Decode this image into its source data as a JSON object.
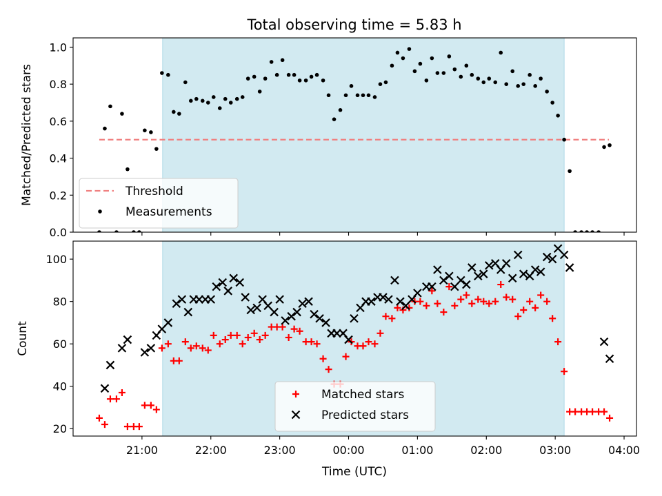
{
  "figure": {
    "title": "Total observing time = 5.83 h",
    "xlabel": "Time (UTC)"
  },
  "colors": {
    "band": "#add8e6",
    "threshold": "#f08080",
    "measurements": "#000000",
    "matched": "#ff0000",
    "predicted": "#000000"
  },
  "chart_data": [
    {
      "type": "scatter",
      "ylabel": "Matched/Predicted stars",
      "ylim": [
        0,
        1.05
      ],
      "yticks": [
        0.0,
        0.2,
        0.4,
        0.6,
        0.8,
        1.0
      ],
      "ytick_labels": [
        "0.0",
        "0.2",
        "0.4",
        "0.6",
        "0.8",
        "1.0"
      ],
      "xlim_hours": [
        20.0,
        28.18
      ],
      "xticks_hours": [
        21,
        22,
        23,
        24,
        25,
        26,
        27,
        28
      ],
      "xtick_labels": [
        "21:00",
        "22:00",
        "23:00",
        "00:00",
        "01:00",
        "02:00",
        "03:00",
        "04:00"
      ],
      "xticklabels_visible": false,
      "shaded_span_hours": [
        21.3,
        27.13
      ],
      "legend_position": "lower left",
      "threshold": {
        "name": "Threshold",
        "value": 0.5,
        "x_hours": [
          20.38,
          27.78
        ]
      },
      "series": [
        {
          "name": "Measurements",
          "x_hours": [
            20.38,
            20.46,
            20.54,
            20.63,
            20.71,
            20.79,
            20.88,
            20.96,
            21.04,
            21.13,
            21.21,
            21.29,
            21.38,
            21.46,
            21.54,
            21.63,
            21.71,
            21.79,
            21.88,
            21.96,
            22.04,
            22.13,
            22.21,
            22.29,
            22.38,
            22.46,
            22.54,
            22.63,
            22.71,
            22.79,
            22.88,
            22.96,
            23.04,
            23.13,
            23.21,
            23.29,
            23.38,
            23.46,
            23.54,
            23.63,
            23.71,
            23.79,
            23.88,
            23.96,
            24.04,
            24.13,
            24.21,
            24.29,
            24.38,
            24.46,
            24.54,
            24.63,
            24.71,
            24.79,
            24.88,
            24.96,
            25.04,
            25.13,
            25.21,
            25.29,
            25.38,
            25.46,
            25.54,
            25.63,
            25.71,
            25.79,
            25.88,
            25.96,
            26.04,
            26.13,
            26.21,
            26.29,
            26.38,
            26.46,
            26.54,
            26.63,
            26.71,
            26.79,
            26.88,
            26.96,
            27.04,
            27.13,
            27.21,
            27.29,
            27.38,
            27.46,
            27.54,
            27.63,
            27.71,
            27.79
          ],
          "values": [
            0.0,
            0.56,
            0.68,
            0.0,
            0.64,
            0.34,
            0.0,
            0.0,
            0.55,
            0.54,
            0.45,
            0.86,
            0.85,
            0.65,
            0.64,
            0.81,
            0.71,
            0.72,
            0.71,
            0.7,
            0.73,
            0.67,
            0.72,
            0.7,
            0.72,
            0.73,
            0.83,
            0.84,
            0.76,
            0.83,
            0.92,
            0.85,
            0.93,
            0.85,
            0.85,
            0.82,
            0.82,
            0.84,
            0.85,
            0.82,
            0.74,
            0.61,
            0.66,
            0.74,
            0.79,
            0.74,
            0.74,
            0.74,
            0.73,
            0.8,
            0.81,
            0.9,
            0.97,
            0.94,
            0.99,
            0.87,
            0.91,
            0.82,
            0.94,
            0.86,
            0.86,
            0.95,
            0.88,
            0.84,
            0.9,
            0.85,
            0.83,
            0.81,
            0.83,
            0.81,
            0.97,
            0.8,
            0.87,
            0.79,
            0.8,
            0.85,
            0.79,
            0.83,
            0.76,
            0.7,
            0.63,
            0.5,
            0.33,
            0.0,
            0.0,
            0.0,
            0.0,
            0.0,
            0.46,
            0.47
          ]
        }
      ]
    },
    {
      "type": "scatter",
      "ylabel": "Count",
      "ylim": [
        16.5,
        108.5
      ],
      "yticks": [
        20,
        40,
        60,
        80,
        100
      ],
      "ytick_labels": [
        "20",
        "40",
        "60",
        "80",
        "100"
      ],
      "xlim_hours": [
        20.0,
        28.18
      ],
      "xticks_hours": [
        21,
        22,
        23,
        24,
        25,
        26,
        27,
        28
      ],
      "xtick_labels": [
        "21:00",
        "22:00",
        "23:00",
        "00:00",
        "01:00",
        "02:00",
        "03:00",
        "04:00"
      ],
      "shaded_span_hours": [
        21.3,
        27.13
      ],
      "legend_position": "lower center",
      "series": [
        {
          "name": "Matched stars",
          "marker": "plus",
          "x_hours": [
            20.38,
            20.46,
            20.54,
            20.63,
            20.71,
            20.79,
            20.88,
            20.96,
            21.04,
            21.13,
            21.21,
            21.29,
            21.38,
            21.46,
            21.54,
            21.63,
            21.71,
            21.79,
            21.88,
            21.96,
            22.04,
            22.13,
            22.21,
            22.29,
            22.38,
            22.46,
            22.54,
            22.63,
            22.71,
            22.79,
            22.88,
            22.96,
            23.04,
            23.13,
            23.21,
            23.29,
            23.38,
            23.46,
            23.54,
            23.63,
            23.71,
            23.79,
            23.88,
            23.96,
            24.04,
            24.13,
            24.21,
            24.29,
            24.38,
            24.46,
            24.54,
            24.63,
            24.71,
            24.79,
            24.88,
            24.96,
            25.04,
            25.13,
            25.21,
            25.29,
            25.38,
            25.46,
            25.54,
            25.63,
            25.71,
            25.79,
            25.88,
            25.96,
            26.04,
            26.13,
            26.21,
            26.29,
            26.38,
            26.46,
            26.54,
            26.63,
            26.71,
            26.79,
            26.88,
            26.96,
            27.04,
            27.13,
            27.21,
            27.29,
            27.38,
            27.46,
            27.54,
            27.63,
            27.71,
            27.79
          ],
          "values": [
            25,
            22,
            34,
            34,
            37,
            21,
            21,
            21,
            31,
            31,
            29,
            58,
            60,
            52,
            52,
            61,
            58,
            59,
            58,
            57,
            64,
            60,
            62,
            64,
            64,
            60,
            63,
            65,
            62,
            64,
            68,
            68,
            68,
            63,
            67,
            66,
            61,
            61,
            60,
            53,
            48,
            41,
            41,
            54,
            61,
            59,
            59,
            61,
            60,
            65,
            73,
            72,
            77,
            76,
            77,
            80,
            80,
            78,
            85,
            79,
            75,
            87,
            78,
            81,
            83,
            79,
            81,
            80,
            79,
            80,
            88,
            82,
            81,
            73,
            76,
            80,
            77,
            83,
            80,
            72,
            61,
            47,
            28,
            28,
            28,
            28,
            28,
            28,
            28,
            25
          ]
        },
        {
          "name": "Predicted stars",
          "marker": "x",
          "x_hours": [
            20.46,
            20.54,
            20.71,
            20.79,
            21.04,
            21.13,
            21.21,
            21.29,
            21.38,
            21.5,
            21.58,
            21.67,
            21.75,
            21.83,
            21.92,
            22.0,
            22.08,
            22.17,
            22.25,
            22.33,
            22.42,
            22.5,
            22.58,
            22.67,
            22.75,
            22.83,
            22.92,
            23.0,
            23.08,
            23.17,
            23.25,
            23.33,
            23.42,
            23.5,
            23.58,
            23.67,
            23.75,
            23.83,
            23.92,
            24.0,
            24.08,
            24.17,
            24.25,
            24.33,
            24.42,
            24.5,
            24.58,
            24.67,
            24.75,
            24.83,
            24.92,
            25.0,
            25.13,
            25.21,
            25.29,
            25.38,
            25.46,
            25.54,
            25.63,
            25.71,
            25.79,
            25.88,
            25.96,
            26.04,
            26.13,
            26.21,
            26.29,
            26.38,
            26.46,
            26.54,
            26.63,
            26.71,
            26.79,
            26.88,
            26.96,
            27.04,
            27.13,
            27.21,
            27.71,
            27.79
          ],
          "values": [
            39,
            50,
            58,
            62,
            56,
            58,
            64,
            67,
            70,
            79,
            81,
            75,
            81,
            81,
            81,
            81,
            87,
            89,
            85,
            91,
            89,
            82,
            76,
            77,
            81,
            78,
            75,
            81,
            71,
            73,
            75,
            79,
            80,
            74,
            72,
            70,
            65,
            65,
            65,
            62,
            72,
            77,
            80,
            80,
            82,
            82,
            81,
            90,
            80,
            78,
            81,
            84,
            87,
            87,
            95,
            90,
            92,
            87,
            90,
            88,
            96,
            92,
            93,
            97,
            98,
            95,
            98,
            91,
            102,
            93,
            92,
            95,
            94,
            101,
            100,
            105,
            102,
            96,
            61,
            53
          ]
        }
      ]
    }
  ]
}
